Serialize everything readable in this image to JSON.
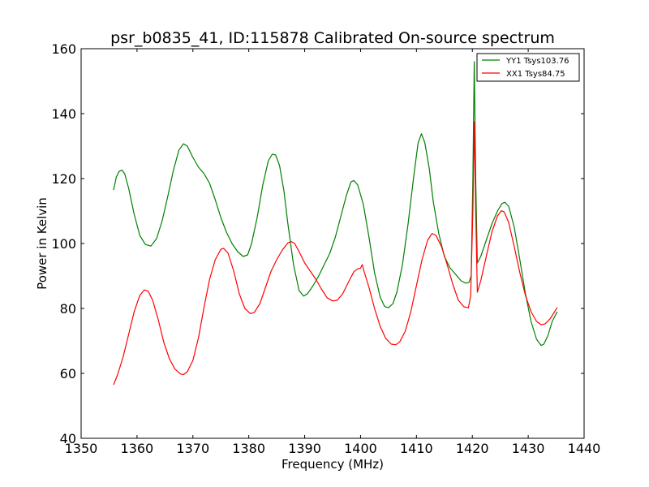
{
  "chart_data": {
    "type": "line",
    "title": "psr_b0835_41, ID:115878 Calibrated On-source spectrum",
    "xlabel": "Frequency (MHz)",
    "ylabel": "Power in Kelvin",
    "xlim": [
      1350,
      1440
    ],
    "ylim": [
      40,
      160
    ],
    "xticks": [
      1350,
      1360,
      1370,
      1380,
      1390,
      1400,
      1410,
      1420,
      1430,
      1440
    ],
    "yticks": [
      40,
      60,
      80,
      100,
      120,
      140,
      160
    ],
    "grid": false,
    "legend_position": "top-right",
    "series": [
      {
        "name": "YY1 Tsys103.76",
        "color": "#008000",
        "points": [
          [
            1355.8,
            116.5
          ],
          [
            1356.3,
            120.5
          ],
          [
            1356.8,
            122.2
          ],
          [
            1357.3,
            122.6
          ],
          [
            1357.8,
            121.5
          ],
          [
            1358.5,
            117
          ],
          [
            1359.5,
            109
          ],
          [
            1360.5,
            102.5
          ],
          [
            1361.5,
            99.7
          ],
          [
            1362.5,
            99.2
          ],
          [
            1363.5,
            101.5
          ],
          [
            1364.5,
            107
          ],
          [
            1365.5,
            114.5
          ],
          [
            1366.5,
            122.5
          ],
          [
            1367.5,
            128.8
          ],
          [
            1368.3,
            130.7
          ],
          [
            1369.0,
            130.0
          ],
          [
            1370.0,
            126.5
          ],
          [
            1371.0,
            123.5
          ],
          [
            1372.0,
            121.5
          ],
          [
            1373.0,
            118.5
          ],
          [
            1374.0,
            113.5
          ],
          [
            1375.0,
            108
          ],
          [
            1376.0,
            103.5
          ],
          [
            1377.0,
            100
          ],
          [
            1378.0,
            97.5
          ],
          [
            1379.0,
            96
          ],
          [
            1379.8,
            96.5
          ],
          [
            1380.5,
            100
          ],
          [
            1381.5,
            108
          ],
          [
            1382.5,
            118
          ],
          [
            1383.5,
            125.5
          ],
          [
            1384.2,
            127.5
          ],
          [
            1384.8,
            127.3
          ],
          [
            1385.5,
            124
          ],
          [
            1386.3,
            116
          ],
          [
            1387.0,
            106
          ],
          [
            1388.0,
            93.5
          ],
          [
            1389.0,
            85.5
          ],
          [
            1389.8,
            83.8
          ],
          [
            1390.5,
            84.5
          ],
          [
            1391.5,
            87
          ],
          [
            1392.5,
            90
          ],
          [
            1393.5,
            93.5
          ],
          [
            1394.5,
            97
          ],
          [
            1395.5,
            102
          ],
          [
            1396.5,
            108.5
          ],
          [
            1397.5,
            115
          ],
          [
            1398.3,
            119
          ],
          [
            1398.8,
            119.4
          ],
          [
            1399.5,
            118
          ],
          [
            1400.5,
            112
          ],
          [
            1401.5,
            102
          ],
          [
            1402.5,
            91
          ],
          [
            1403.5,
            83.5
          ],
          [
            1404.3,
            80.6
          ],
          [
            1405.0,
            80.2
          ],
          [
            1405.8,
            81.5
          ],
          [
            1406.5,
            85
          ],
          [
            1407.5,
            93.5
          ],
          [
            1408.5,
            106
          ],
          [
            1409.5,
            120.5
          ],
          [
            1410.3,
            131
          ],
          [
            1410.9,
            133.8
          ],
          [
            1411.5,
            131
          ],
          [
            1412.3,
            123
          ],
          [
            1413.0,
            113
          ],
          [
            1414.0,
            103
          ],
          [
            1415.0,
            96
          ],
          [
            1416.0,
            92.5
          ],
          [
            1417.0,
            90.5
          ],
          [
            1418.0,
            88.5
          ],
          [
            1418.8,
            87.8
          ],
          [
            1419.4,
            88
          ],
          [
            1419.8,
            90
          ],
          [
            1420.1,
            120
          ],
          [
            1420.35,
            156
          ],
          [
            1420.6,
            120
          ],
          [
            1420.9,
            94
          ],
          [
            1421.5,
            96
          ],
          [
            1422.5,
            101
          ],
          [
            1423.5,
            106
          ],
          [
            1424.5,
            110
          ],
          [
            1425.3,
            112.3
          ],
          [
            1425.8,
            112.7
          ],
          [
            1426.5,
            111.5
          ],
          [
            1427.5,
            105
          ],
          [
            1428.5,
            95
          ],
          [
            1429.5,
            84.5
          ],
          [
            1430.5,
            76
          ],
          [
            1431.5,
            70.5
          ],
          [
            1432.3,
            68.6
          ],
          [
            1432.8,
            69
          ],
          [
            1433.5,
            71.5
          ],
          [
            1434.3,
            76
          ],
          [
            1435.2,
            79
          ]
        ]
      },
      {
        "name": "XX1 Tsys84.75",
        "color": "#ff0000",
        "points": [
          [
            1355.8,
            56.5
          ],
          [
            1356.5,
            59.5
          ],
          [
            1357.5,
            65
          ],
          [
            1358.5,
            72
          ],
          [
            1359.5,
            79
          ],
          [
            1360.5,
            84
          ],
          [
            1361.3,
            85.7
          ],
          [
            1362.0,
            85.3
          ],
          [
            1362.8,
            82.5
          ],
          [
            1363.8,
            76.5
          ],
          [
            1364.8,
            69.5
          ],
          [
            1365.8,
            64.5
          ],
          [
            1366.8,
            61.3
          ],
          [
            1367.8,
            59.8
          ],
          [
            1368.3,
            59.6
          ],
          [
            1369.0,
            60.5
          ],
          [
            1370.0,
            64
          ],
          [
            1371.0,
            71
          ],
          [
            1372.0,
            80.5
          ],
          [
            1373.0,
            89
          ],
          [
            1374.0,
            95
          ],
          [
            1375.0,
            98.2
          ],
          [
            1375.5,
            98.5
          ],
          [
            1376.3,
            97
          ],
          [
            1377.3,
            91.5
          ],
          [
            1378.3,
            84.5
          ],
          [
            1379.3,
            80
          ],
          [
            1380.3,
            78.4
          ],
          [
            1381.0,
            78.8
          ],
          [
            1382.0,
            81.5
          ],
          [
            1383.0,
            86.5
          ],
          [
            1384.0,
            91.5
          ],
          [
            1385.0,
            95
          ],
          [
            1386.0,
            98
          ],
          [
            1387.0,
            100.2
          ],
          [
            1387.6,
            100.6
          ],
          [
            1388.2,
            100
          ],
          [
            1389.0,
            97.5
          ],
          [
            1390.0,
            94
          ],
          [
            1391.0,
            91.5
          ],
          [
            1392.0,
            89
          ],
          [
            1393.0,
            86
          ],
          [
            1394.0,
            83.3
          ],
          [
            1395.0,
            82.3
          ],
          [
            1395.8,
            82.5
          ],
          [
            1396.8,
            84.5
          ],
          [
            1397.8,
            88
          ],
          [
            1398.8,
            91.3
          ],
          [
            1399.5,
            92.2
          ],
          [
            1400.0,
            92.4
          ],
          [
            1400.3,
            93.5
          ],
          [
            1400.7,
            91
          ],
          [
            1401.5,
            86.5
          ],
          [
            1402.5,
            80
          ],
          [
            1403.5,
            74.5
          ],
          [
            1404.5,
            70.8
          ],
          [
            1405.5,
            69
          ],
          [
            1406.3,
            68.8
          ],
          [
            1407.0,
            69.7
          ],
          [
            1408.0,
            73
          ],
          [
            1409.0,
            79
          ],
          [
            1410.0,
            87
          ],
          [
            1411.0,
            95
          ],
          [
            1412.0,
            101
          ],
          [
            1412.8,
            103.1
          ],
          [
            1413.5,
            102.5
          ],
          [
            1414.5,
            99
          ],
          [
            1415.5,
            93.5
          ],
          [
            1416.5,
            87.5
          ],
          [
            1417.5,
            82.5
          ],
          [
            1418.5,
            80.5
          ],
          [
            1419.3,
            80.2
          ],
          [
            1419.7,
            84
          ],
          [
            1420.1,
            110
          ],
          [
            1420.35,
            137.5
          ],
          [
            1420.6,
            110
          ],
          [
            1420.9,
            85
          ],
          [
            1421.5,
            88.5
          ],
          [
            1422.5,
            96
          ],
          [
            1423.5,
            103.5
          ],
          [
            1424.5,
            108.5
          ],
          [
            1425.2,
            110.1
          ],
          [
            1425.7,
            109.7
          ],
          [
            1426.5,
            106.5
          ],
          [
            1427.5,
            99
          ],
          [
            1428.5,
            91
          ],
          [
            1429.5,
            84
          ],
          [
            1430.5,
            79
          ],
          [
            1431.5,
            76
          ],
          [
            1432.3,
            75
          ],
          [
            1433.0,
            75.2
          ],
          [
            1434.0,
            77
          ],
          [
            1435.2,
            80.3
          ]
        ]
      }
    ]
  }
}
